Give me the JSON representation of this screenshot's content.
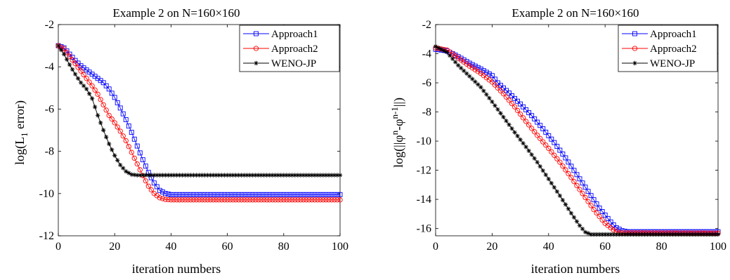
{
  "chart_data": [
    {
      "type": "line",
      "title": "Example 2 on N=160×160",
      "xlabel": "iteration numbers",
      "ylabel_parts": {
        "prefix": "log(L",
        "sub": "1",
        "suffix": " error)"
      },
      "xlim": [
        0,
        100
      ],
      "ylim": [
        -12,
        -2
      ],
      "xticks": [
        0,
        20,
        40,
        60,
        80,
        100
      ],
      "yticks": [
        -2,
        -4,
        -6,
        -8,
        -10,
        -12
      ],
      "legend_position": "top-right",
      "series": [
        {
          "name": "Approach1",
          "color": "#0000ff",
          "marker": "square",
          "points": [
            [
              0,
              -3
            ],
            [
              2,
              -3.1
            ],
            [
              4,
              -3.4
            ],
            [
              6,
              -3.7
            ],
            [
              8,
              -3.95
            ],
            [
              10,
              -4.15
            ],
            [
              12,
              -4.35
            ],
            [
              14,
              -4.55
            ],
            [
              16,
              -4.75
            ],
            [
              18,
              -5.05
            ],
            [
              20,
              -5.45
            ],
            [
              22,
              -5.95
            ],
            [
              24,
              -6.5
            ],
            [
              26,
              -7.1
            ],
            [
              28,
              -7.75
            ],
            [
              30,
              -8.4
            ],
            [
              32,
              -9
            ],
            [
              34,
              -9.5
            ],
            [
              36,
              -9.85
            ],
            [
              38,
              -10
            ],
            [
              40,
              -10.05
            ],
            [
              100,
              -10.05
            ]
          ]
        },
        {
          "name": "Approach2",
          "color": "#ff0000",
          "marker": "circle",
          "points": [
            [
              0,
              -3
            ],
            [
              2,
              -3.15
            ],
            [
              4,
              -3.5
            ],
            [
              6,
              -3.85
            ],
            [
              8,
              -4.2
            ],
            [
              10,
              -4.55
            ],
            [
              12,
              -4.9
            ],
            [
              14,
              -5.3
            ],
            [
              16,
              -5.8
            ],
            [
              18,
              -6.3
            ],
            [
              20,
              -6.65
            ],
            [
              22,
              -7.05
            ],
            [
              24,
              -7.5
            ],
            [
              26,
              -8.05
            ],
            [
              28,
              -8.6
            ],
            [
              30,
              -9.15
            ],
            [
              32,
              -9.65
            ],
            [
              34,
              -10
            ],
            [
              36,
              -10.2
            ],
            [
              38,
              -10.28
            ],
            [
              40,
              -10.3
            ],
            [
              100,
              -10.3
            ]
          ]
        },
        {
          "name": "WENO-JP",
          "color": "#000000",
          "marker": "star",
          "points": [
            [
              0,
              -3
            ],
            [
              2,
              -3.4
            ],
            [
              4,
              -3.9
            ],
            [
              6,
              -4.35
            ],
            [
              8,
              -4.75
            ],
            [
              10,
              -5.05
            ],
            [
              12,
              -5.5
            ],
            [
              14,
              -6.3
            ],
            [
              16,
              -7
            ],
            [
              18,
              -7.65
            ],
            [
              20,
              -8.2
            ],
            [
              22,
              -8.65
            ],
            [
              24,
              -8.95
            ],
            [
              26,
              -9.1
            ],
            [
              28,
              -9.13
            ],
            [
              100,
              -9.13
            ]
          ]
        }
      ]
    },
    {
      "type": "line",
      "title": "Example 2 on N=160×160",
      "xlabel": "iteration numbers",
      "ylabel_parts": {
        "prefix": "log(||φ",
        "sup1": "n",
        "mid": "-φ",
        "sup2": "n-1",
        "suffix": "||)"
      },
      "xlim": [
        0,
        100
      ],
      "ylim": [
        -16.5,
        -2
      ],
      "xticks": [
        0,
        20,
        40,
        60,
        80,
        100
      ],
      "yticks": [
        -2,
        -4,
        -6,
        -8,
        -10,
        -12,
        -14,
        -16
      ],
      "legend_position": "top-right",
      "series": [
        {
          "name": "Approach1",
          "color": "#0000ff",
          "marker": "square",
          "points": [
            [
              0,
              -3.7
            ],
            [
              4,
              -3.8
            ],
            [
              8,
              -4.2
            ],
            [
              12,
              -4.65
            ],
            [
              16,
              -5.05
            ],
            [
              20,
              -5.5
            ],
            [
              22,
              -6
            ],
            [
              26,
              -6.7
            ],
            [
              30,
              -7.45
            ],
            [
              34,
              -8.25
            ],
            [
              38,
              -9.15
            ],
            [
              42,
              -10.1
            ],
            [
              46,
              -11.15
            ],
            [
              50,
              -12.3
            ],
            [
              54,
              -13.45
            ],
            [
              58,
              -14.6
            ],
            [
              62,
              -15.55
            ],
            [
              64,
              -15.95
            ],
            [
              66,
              -16.15
            ],
            [
              68,
              -16.22
            ],
            [
              100,
              -16.22
            ]
          ]
        },
        {
          "name": "Approach2",
          "color": "#ff0000",
          "marker": "circle",
          "points": [
            [
              0,
              -3.6
            ],
            [
              4,
              -3.75
            ],
            [
              8,
              -4.3
            ],
            [
              12,
              -4.85
            ],
            [
              16,
              -5.35
            ],
            [
              20,
              -5.95
            ],
            [
              24,
              -6.75
            ],
            [
              28,
              -7.65
            ],
            [
              32,
              -8.65
            ],
            [
              36,
              -9.6
            ],
            [
              40,
              -10.5
            ],
            [
              44,
              -11.45
            ],
            [
              48,
              -12.5
            ],
            [
              52,
              -13.6
            ],
            [
              56,
              -14.7
            ],
            [
              60,
              -15.65
            ],
            [
              63,
              -16.1
            ],
            [
              65,
              -16.3
            ],
            [
              100,
              -16.32
            ]
          ]
        },
        {
          "name": "WENO-JP",
          "color": "#000000",
          "marker": "star",
          "points": [
            [
              0,
              -3.5
            ],
            [
              4,
              -3.9
            ],
            [
              8,
              -4.8
            ],
            [
              12,
              -5.55
            ],
            [
              16,
              -6.3
            ],
            [
              20,
              -7.3
            ],
            [
              24,
              -8.35
            ],
            [
              28,
              -9.4
            ],
            [
              32,
              -10.4
            ],
            [
              36,
              -11.45
            ],
            [
              40,
              -12.6
            ],
            [
              44,
              -13.75
            ],
            [
              48,
              -14.95
            ],
            [
              51,
              -15.8
            ],
            [
              53,
              -16.25
            ],
            [
              55,
              -16.4
            ],
            [
              100,
              -16.4
            ]
          ]
        }
      ]
    }
  ]
}
